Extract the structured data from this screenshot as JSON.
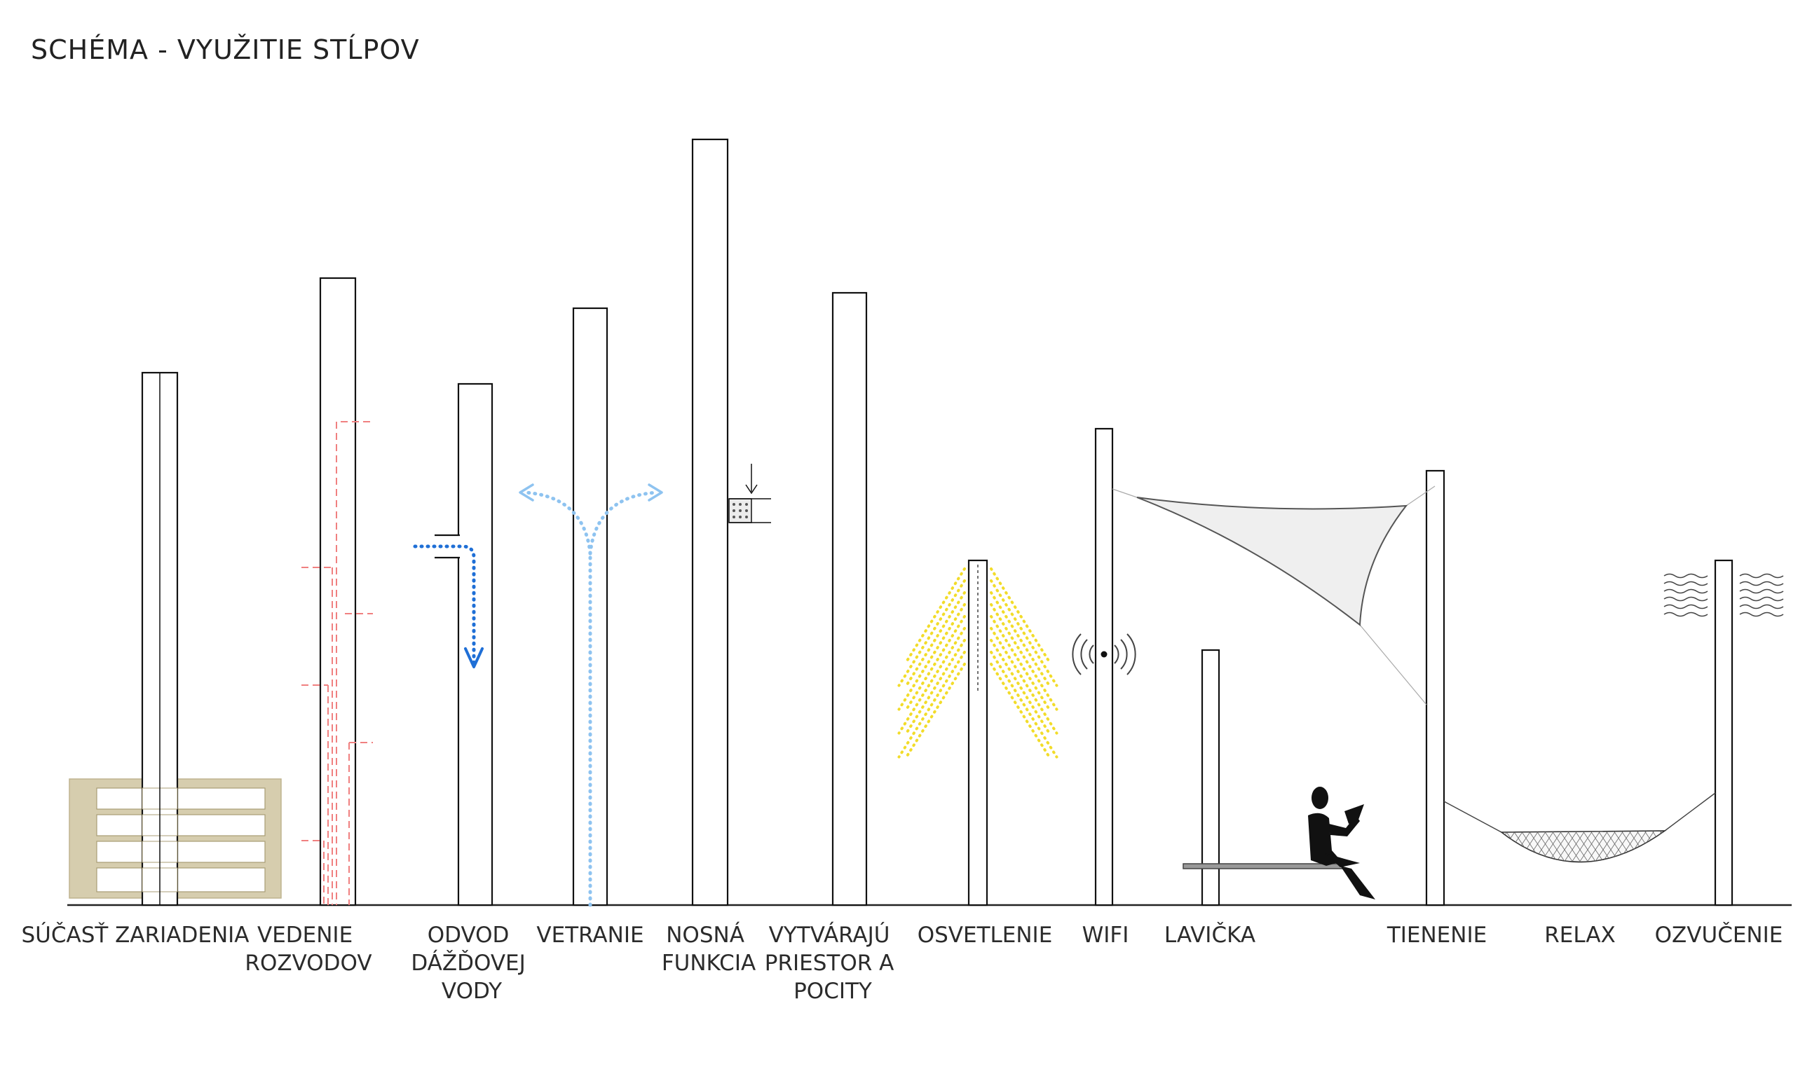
{
  "title": "SCHÉMA - VYUŽITIE STĹPOV",
  "colors": {
    "post_stroke": "#111111",
    "ground": "#222222",
    "shelf": "#d6cdae",
    "utility": "#f08080",
    "rain": "#1f6fd6",
    "ventilation": "#8ec3f0",
    "light": "#f2dc2a",
    "sail": "#efefef"
  },
  "icons": {
    "shelf": "shelf-unit-icon",
    "wiring": "wiring-icon",
    "rain": "rain-drain-arrow-icon",
    "ventilation": "ventilation-arrows-icon",
    "load": "load-bearing-icon",
    "light": "light-rays-icon",
    "wifi": "wifi-signal-icon",
    "bench": "bench-icon",
    "person": "person-reading-icon",
    "sail": "shade-sail-icon",
    "hammock": "hammock-icon",
    "sound": "sound-waves-icon"
  },
  "labels": {
    "soucast": [
      "SÚČASŤ ZARIADENIA"
    ],
    "vedenie": [
      "VEDENIE",
      "ROZVODOV"
    ],
    "odvod": [
      "ODVOD",
      "DÁŽĎOVEJ",
      "VODY"
    ],
    "vetranie": [
      "VETRANIE"
    ],
    "nosna": [
      "NOSNÁ",
      "FUNKCIA"
    ],
    "vytvaraju": [
      "VYTVÁRAJÚ",
      "PRIESTOR A",
      "POCITY"
    ],
    "osvetlenie": [
      "OSVETLENIE"
    ],
    "wifi": [
      "WIFI"
    ],
    "lavicka": [
      "LAVIČKA"
    ],
    "tienenie": [
      "TIENENIE"
    ],
    "relax": [
      "RELAX"
    ],
    "ozvucenie": [
      "OZVUČENIE"
    ]
  }
}
